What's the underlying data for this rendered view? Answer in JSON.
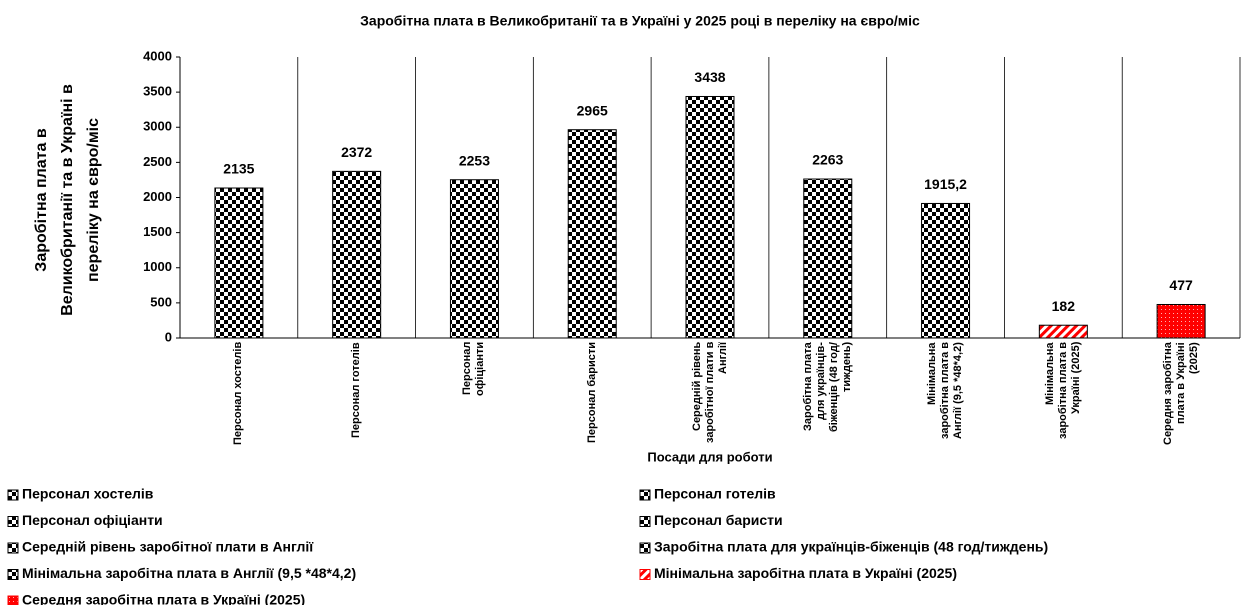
{
  "chart_data": {
    "type": "bar",
    "title": "Заробітна плата в Великобританії та в Україні у 2025 році в переліку на євро/міс",
    "ylabel": [
      "Заробітна плата в",
      "Великобританії та в Україні в",
      "переліку на євро/міс"
    ],
    "xlabel": "Посади для роботи",
    "categories": [
      "Персонал хостелів",
      "Персонал готелів",
      "Персонал офіціанти",
      "Персонал баристи",
      "Середній рівень заробітної плати в Англії",
      "Заробітна плата для українців-біженців (48 год/тиждень)",
      "Мінімальна заробітна плата в Англії (9,5 *48*4,2)",
      "Мінімальна заробітна плата в Україні (2025)",
      "Середня заробітна плата в Україні (2025)"
    ],
    "values": [
      2135,
      2372,
      2253,
      2965,
      3438,
      2263,
      1915.2,
      182,
      477
    ],
    "value_labels": [
      "2135",
      "2372",
      "2253",
      "2965",
      "3438",
      "2263",
      "1915,2",
      "182",
      "477"
    ],
    "colors": [
      "#000000",
      "#000000",
      "#000000",
      "#000000",
      "#000000",
      "#000000",
      "#000000",
      "#ff0000",
      "#ff0000"
    ],
    "patterns": [
      "checker",
      "checker",
      "checker",
      "checker",
      "checker",
      "checker",
      "checker",
      "stripes",
      "dots"
    ],
    "ylim": [
      0,
      4000
    ],
    "yticks": [
      0,
      500,
      1000,
      1500,
      2000,
      2500,
      3000,
      3500,
      4000
    ],
    "grid": true
  }
}
